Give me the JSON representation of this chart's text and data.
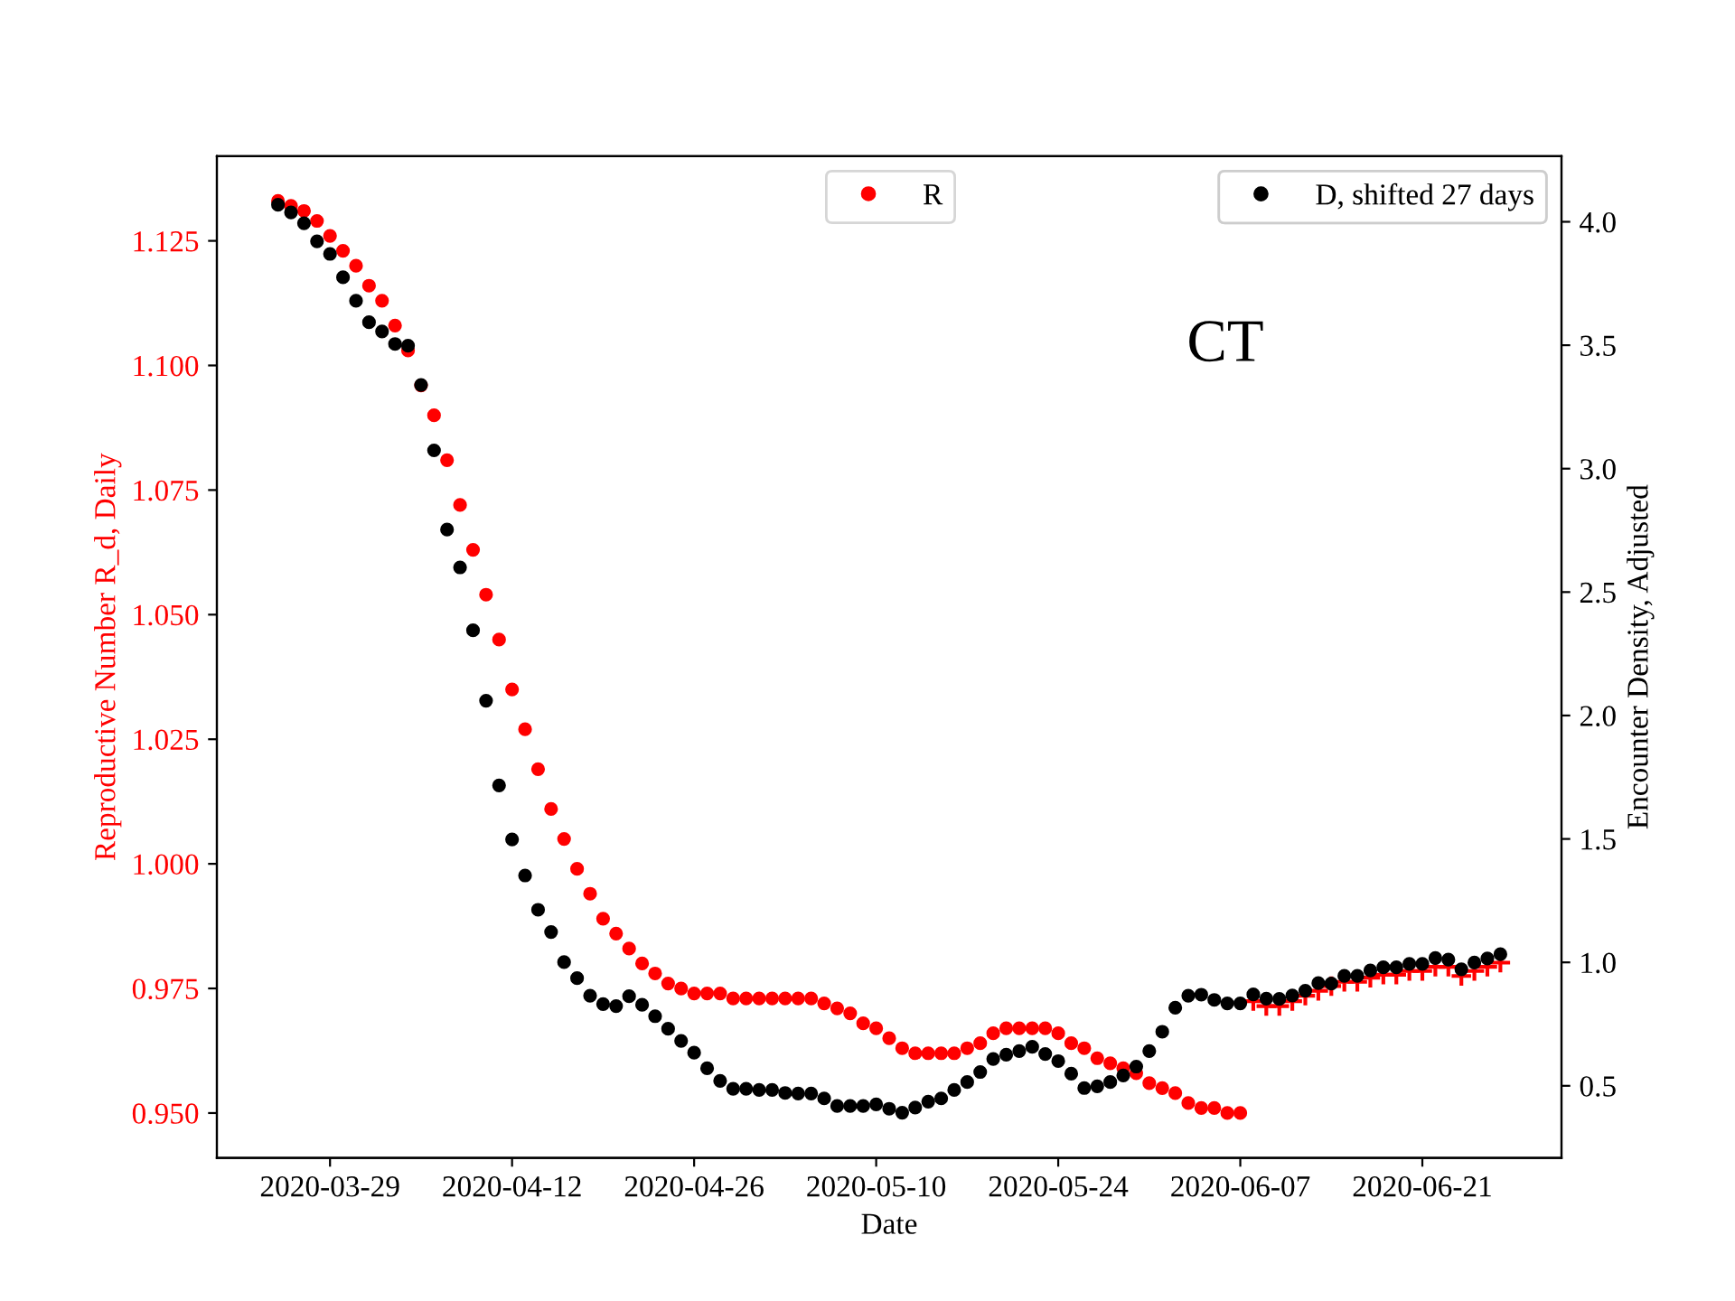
{
  "chart_data": {
    "type": "scatter",
    "xlabel": "Date",
    "ylabel": "Reproductive Number R_d, Daily",
    "y2label": "Encounter Density, Adjusted",
    "annotations": [
      "CT"
    ],
    "x": [
      "2020-03-25",
      "2020-03-26",
      "2020-03-27",
      "2020-03-28",
      "2020-03-29",
      "2020-03-30",
      "2020-03-31",
      "2020-04-01",
      "2020-04-02",
      "2020-04-03",
      "2020-04-04",
      "2020-04-05",
      "2020-04-06",
      "2020-04-07",
      "2020-04-08",
      "2020-04-09",
      "2020-04-10",
      "2020-04-11",
      "2020-04-12",
      "2020-04-13",
      "2020-04-14",
      "2020-04-15",
      "2020-04-16",
      "2020-04-17",
      "2020-04-18",
      "2020-04-19",
      "2020-04-20",
      "2020-04-21",
      "2020-04-22",
      "2020-04-23",
      "2020-04-24",
      "2020-04-25",
      "2020-04-26",
      "2020-04-27",
      "2020-04-28",
      "2020-04-29",
      "2020-04-30",
      "2020-05-01",
      "2020-05-02",
      "2020-05-03",
      "2020-05-04",
      "2020-05-05",
      "2020-05-06",
      "2020-05-07",
      "2020-05-08",
      "2020-05-09",
      "2020-05-10",
      "2020-05-11",
      "2020-05-12",
      "2020-05-13",
      "2020-05-14",
      "2020-05-15",
      "2020-05-16",
      "2020-05-17",
      "2020-05-18",
      "2020-05-19",
      "2020-05-20",
      "2020-05-21",
      "2020-05-22",
      "2020-05-23",
      "2020-05-24",
      "2020-05-25",
      "2020-05-26",
      "2020-05-27",
      "2020-05-28",
      "2020-05-29",
      "2020-05-30",
      "2020-05-31",
      "2020-06-01",
      "2020-06-02",
      "2020-06-03",
      "2020-06-04",
      "2020-06-05",
      "2020-06-06",
      "2020-06-07",
      "2020-06-08",
      "2020-06-09",
      "2020-06-10",
      "2020-06-11",
      "2020-06-12",
      "2020-06-13",
      "2020-06-14",
      "2020-06-15",
      "2020-06-16",
      "2020-06-17",
      "2020-06-18",
      "2020-06-19",
      "2020-06-20",
      "2020-06-21",
      "2020-06-22",
      "2020-06-23",
      "2020-06-24",
      "2020-06-25",
      "2020-06-26",
      "2020-06-27"
    ],
    "xlim": [
      "2020-03-20T07:12",
      "2020-07-01T16:48"
    ],
    "xticks": [
      "2020-03-29",
      "2020-04-12",
      "2020-04-26",
      "2020-05-10",
      "2020-05-24",
      "2020-06-07",
      "2020-06-21"
    ],
    "ylim": [
      0.941,
      1.142
    ],
    "yticks": [
      {
        "value": 0.95,
        "label": "0.950"
      },
      {
        "value": 0.975,
        "label": "0.975"
      },
      {
        "value": 1.0,
        "label": "1.000"
      },
      {
        "value": 1.025,
        "label": "1.025"
      },
      {
        "value": 1.05,
        "label": "1.050"
      },
      {
        "value": 1.075,
        "label": "1.075"
      },
      {
        "value": 1.1,
        "label": "1.100"
      },
      {
        "value": 1.125,
        "label": "1.125"
      }
    ],
    "y2lim": [
      0.208,
      4.266
    ],
    "y2ticks": [
      {
        "value": 0.5,
        "label": "0.5"
      },
      {
        "value": 1.0,
        "label": "1.0"
      },
      {
        "value": 1.5,
        "label": "1.5"
      },
      {
        "value": 2.0,
        "label": "2.0"
      },
      {
        "value": 2.5,
        "label": "2.5"
      },
      {
        "value": 3.0,
        "label": "3.0"
      },
      {
        "value": 3.5,
        "label": "3.5"
      },
      {
        "value": 4.0,
        "label": "4.0"
      }
    ],
    "grid": false,
    "marker": "circle",
    "legend": "top right",
    "series": [
      {
        "name": "R",
        "color": "#ff0000",
        "values": [
          1.133,
          1.132,
          1.131,
          1.129,
          1.126,
          1.123,
          1.12,
          1.116,
          1.113,
          1.108,
          1.103,
          1.096,
          1.09,
          1.081,
          1.072,
          1.063,
          1.054,
          1.045,
          1.035,
          1.027,
          1.019,
          1.011,
          1.005,
          0.999,
          0.994,
          0.989,
          0.986,
          0.983,
          0.98,
          0.978,
          0.976,
          0.975,
          0.974,
          0.974,
          0.974,
          0.973,
          0.973,
          0.973,
          0.973,
          0.973,
          0.973,
          0.973,
          0.972,
          0.971,
          0.97,
          0.968,
          0.967,
          0.965,
          0.963,
          0.962,
          0.962,
          0.962,
          0.962,
          0.963,
          0.964,
          0.966,
          0.967,
          0.967,
          0.967,
          0.967,
          0.966,
          0.964,
          0.963,
          0.961,
          0.96,
          0.959,
          0.958,
          0.956,
          0.955,
          0.954,
          0.952,
          0.951,
          0.951,
          0.95,
          0.95,
          null,
          null,
          null,
          null,
          null,
          null,
          null,
          null,
          null,
          null,
          null,
          null,
          null,
          null,
          null,
          null,
          null,
          null,
          null,
          null
        ]
      },
      {
        "name": "D, shifted 27 days",
        "color": "#000000",
        "axis": "y2",
        "values": [
          4.069,
          4.038,
          3.994,
          3.921,
          3.87,
          3.775,
          3.68,
          3.593,
          3.556,
          3.505,
          3.498,
          3.339,
          3.074,
          2.753,
          2.6,
          2.345,
          2.06,
          1.717,
          1.498,
          1.352,
          1.213,
          1.123,
          1.001,
          0.936,
          0.865,
          0.831,
          0.823,
          0.863,
          0.828,
          0.782,
          0.731,
          0.682,
          0.634,
          0.571,
          0.52,
          0.488,
          0.488,
          0.483,
          0.483,
          0.471,
          0.469,
          0.469,
          0.449,
          0.418,
          0.418,
          0.418,
          0.425,
          0.407,
          0.391,
          0.412,
          0.436,
          0.449,
          0.483,
          0.515,
          0.556,
          0.609,
          0.626,
          0.641,
          0.658,
          0.629,
          0.6,
          0.549,
          0.491,
          0.498,
          0.515,
          0.542,
          0.578,
          0.641,
          0.719,
          0.816,
          0.865,
          0.869,
          0.848,
          0.834,
          0.834,
          0.87,
          0.853,
          0.852,
          0.866,
          0.885,
          0.916,
          0.914,
          0.945,
          0.945,
          0.967,
          0.98,
          0.98,
          0.994,
          0.994,
          1.018,
          1.011,
          0.972,
          0.999,
          1.016,
          1.033
        ]
      },
      {
        "color": "#ff0000",
        "axis": "y2",
        "marker": "cross",
        "values": [
          null,
          null,
          null,
          null,
          null,
          null,
          null,
          null,
          null,
          null,
          null,
          null,
          null,
          null,
          null,
          null,
          null,
          null,
          null,
          null,
          null,
          null,
          null,
          null,
          null,
          null,
          null,
          null,
          null,
          null,
          null,
          null,
          null,
          null,
          null,
          null,
          null,
          null,
          null,
          null,
          null,
          null,
          null,
          null,
          null,
          null,
          null,
          null,
          null,
          null,
          null,
          null,
          null,
          null,
          null,
          null,
          null,
          null,
          null,
          null,
          null,
          null,
          null,
          null,
          null,
          null,
          null,
          null,
          null,
          null,
          null,
          null,
          null,
          null,
          null,
          0.843,
          0.823,
          0.823,
          0.843,
          0.865,
          0.885,
          0.904,
          0.921,
          0.921,
          0.938,
          0.95,
          0.95,
          0.965,
          0.965,
          0.982,
          0.982,
          0.945,
          0.965,
          0.982,
          0.999
        ]
      }
    ]
  }
}
